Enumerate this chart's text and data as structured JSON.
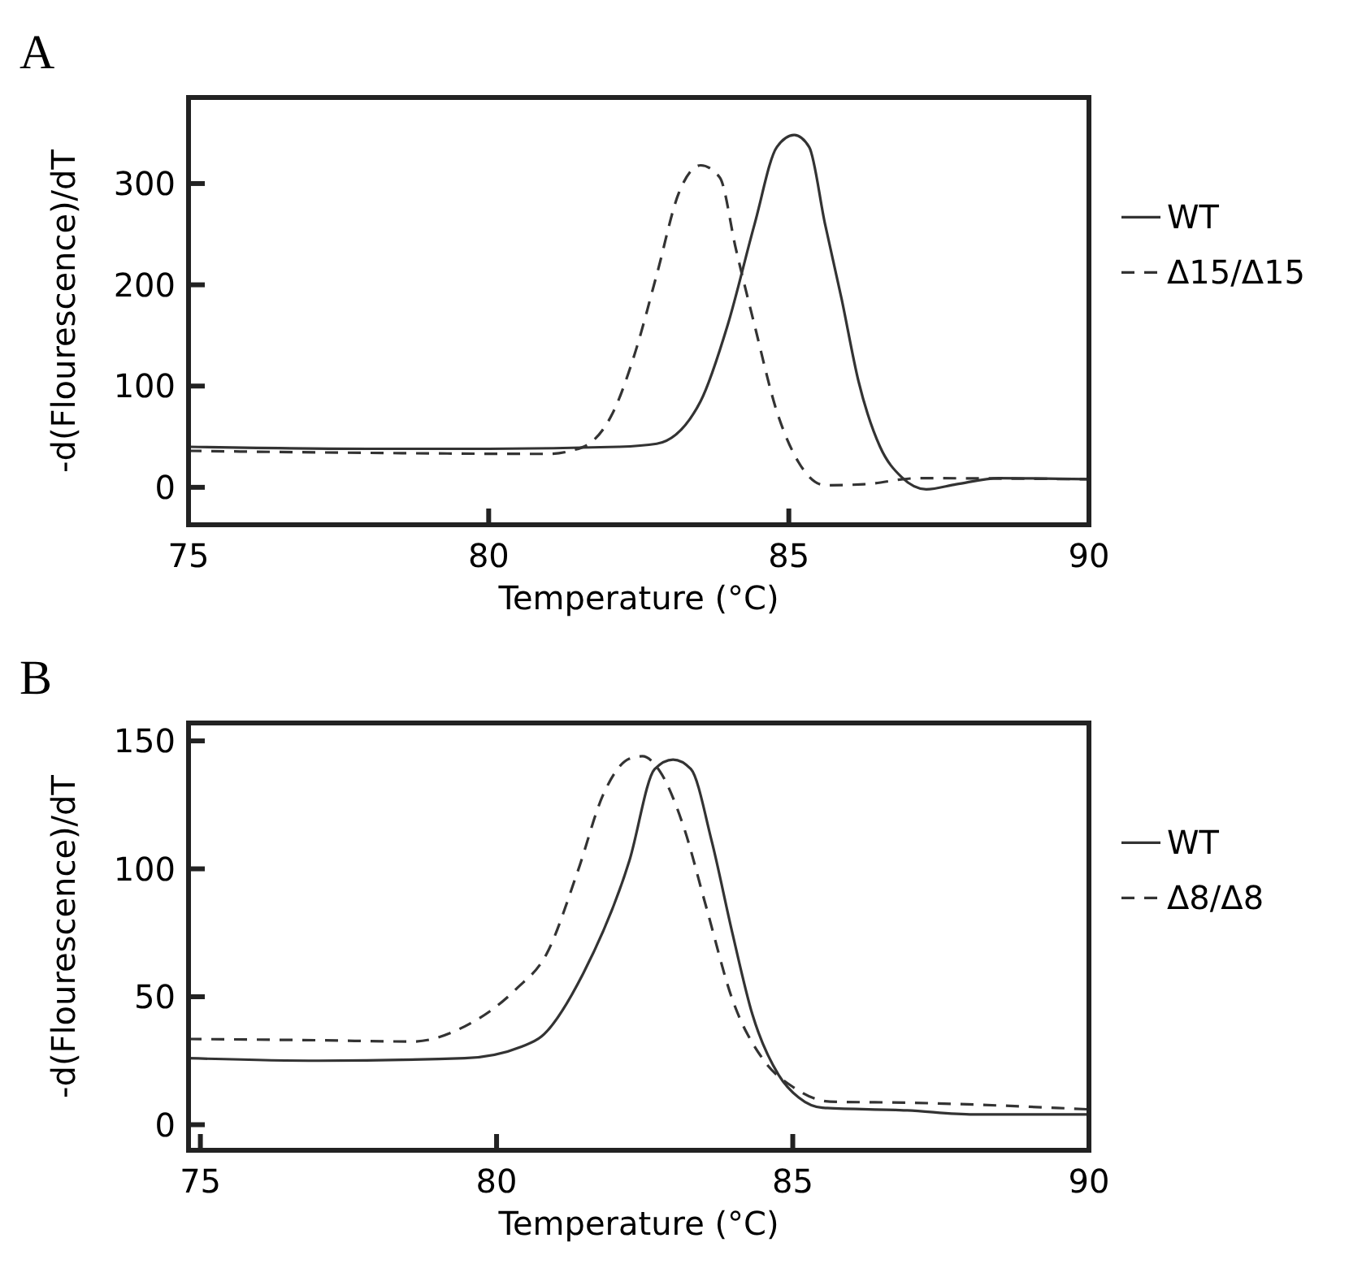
{
  "chart_data": [
    {
      "type": "line",
      "title": "A",
      "xlabel": "Temperature (°C)",
      "ylabel": "-d(Flourescence)/dT",
      "xlim": [
        75,
        90
      ],
      "ylim": [
        -37,
        385
      ],
      "xticks": [
        75,
        80,
        85,
        90
      ],
      "yticks": [
        0,
        100,
        200,
        300
      ],
      "legend": "right",
      "grid": false,
      "series": [
        {
          "name": "WT",
          "color": "#333333",
          "line_style": "solid",
          "x": [
            75,
            78,
            80,
            82.17,
            82.8,
            83.53,
            83.98,
            84.43,
            84.8,
            85.09,
            85.34,
            85.6,
            85.88,
            86.16,
            86.52,
            86.88,
            87.29,
            87.79,
            88.5,
            90
          ],
          "values": [
            40,
            38,
            38,
            40,
            43,
            85,
            160,
            260,
            336,
            348,
            336,
            261,
            186,
            105,
            40,
            10,
            -2,
            3,
            9,
            8
          ]
        },
        {
          "name": "Δ15/Δ15",
          "color": "#333333",
          "line_style": "dashed",
          "x": [
            75,
            78,
            81,
            81.36,
            81.72,
            82.08,
            82.45,
            82.8,
            83.17,
            83.53,
            83.85,
            84.12,
            84.43,
            84.8,
            85.16,
            85.61,
            86.25,
            87.15,
            90
          ],
          "values": [
            36,
            34,
            33,
            36,
            45,
            75,
            135,
            210,
            291,
            318,
            306,
            235,
            160,
            75,
            25,
            2,
            3,
            9,
            8
          ]
        }
      ]
    },
    {
      "type": "line",
      "title": "B",
      "xlabel": "Temperature (°C)",
      "ylabel": "-d(Flourescence)/dT",
      "xlim": [
        74.8,
        90
      ],
      "ylim": [
        -10,
        157
      ],
      "xticks": [
        75,
        80,
        85,
        90
      ],
      "yticks": [
        0,
        50,
        100,
        150
      ],
      "legend": "right",
      "grid": false,
      "series": [
        {
          "name": "WT",
          "color": "#333333",
          "line_style": "solid",
          "x": [
            74.8,
            77,
            79.46,
            80.42,
            80.76,
            81.46,
            82.24,
            82.67,
            82.98,
            83.28,
            83.63,
            83.98,
            84.32,
            84.76,
            85.1,
            85.5,
            86.93,
            88.05,
            90
          ],
          "values": [
            26,
            25,
            26,
            30.5,
            34.5,
            59,
            103,
            139,
            142.7,
            139,
            111,
            75,
            43,
            19.5,
            10.6,
            6.6,
            5.6,
            4,
            4
          ]
        },
        {
          "name": "Δ8/Δ8",
          "color": "#333333",
          "line_style": "dashed",
          "x": [
            74.8,
            77,
            78.59,
            79.46,
            80.33,
            80.85,
            81.37,
            81.8,
            82.24,
            82.46,
            82.76,
            83.15,
            83.54,
            83.98,
            84.5,
            85.02,
            85.63,
            86.93,
            90
          ],
          "values": [
            33.5,
            33,
            32.5,
            38.4,
            53,
            67,
            99,
            129,
            143,
            144,
            138,
            117,
            85,
            49,
            25.5,
            14.5,
            9,
            8.6,
            6
          ]
        }
      ]
    }
  ]
}
